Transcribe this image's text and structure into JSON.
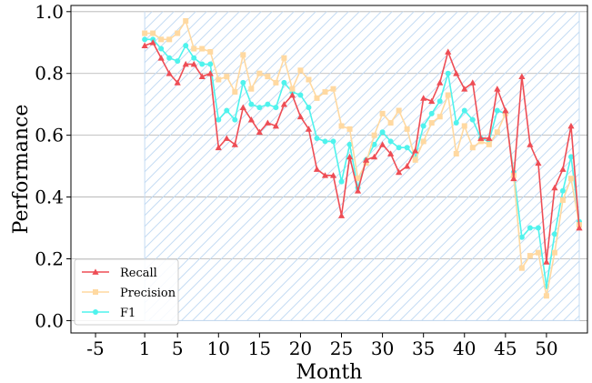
{
  "chart_data": {
    "type": "line",
    "xlabel": "Month",
    "ylabel": "Performance",
    "xlim": [
      -8,
      55
    ],
    "ylim": [
      -0.04,
      1.02
    ],
    "xticks": [
      -5,
      1,
      5,
      10,
      15,
      20,
      25,
      30,
      35,
      40,
      45,
      50
    ],
    "xtick_labels": [
      "-5",
      "1",
      "5",
      "10",
      "15",
      "20",
      "25",
      "30",
      "35",
      "40",
      "45",
      "50"
    ],
    "yticks": [
      0.0,
      0.2,
      0.4,
      0.6,
      0.8,
      1.0
    ],
    "ytick_labels": [
      "0.0",
      "0.2",
      "0.4",
      "0.6",
      "0.8",
      "1.0"
    ],
    "grid": "horizontal",
    "legend_position": "bottom-left",
    "x": [
      1,
      2,
      3,
      4,
      5,
      6,
      7,
      8,
      9,
      10,
      11,
      12,
      13,
      14,
      15,
      16,
      17,
      18,
      19,
      20,
      21,
      22,
      23,
      24,
      25,
      26,
      27,
      28,
      29,
      30,
      31,
      32,
      33,
      34,
      35,
      36,
      37,
      38,
      39,
      40,
      41,
      42,
      43,
      44,
      45,
      46,
      47,
      48,
      49,
      50,
      51,
      52,
      53,
      54
    ],
    "series": [
      {
        "name": "Recall",
        "color": "#ee4d55",
        "marker": "triangle",
        "values": [
          0.89,
          0.9,
          0.85,
          0.8,
          0.77,
          0.83,
          0.83,
          0.79,
          0.8,
          0.56,
          0.59,
          0.57,
          0.69,
          0.65,
          0.61,
          0.64,
          0.63,
          0.7,
          0.73,
          0.66,
          0.62,
          0.49,
          0.47,
          0.47,
          0.34,
          0.53,
          0.42,
          0.52,
          0.53,
          0.57,
          0.54,
          0.48,
          0.5,
          0.55,
          0.72,
          0.71,
          0.77,
          0.87,
          0.8,
          0.75,
          0.77,
          0.59,
          0.59,
          0.75,
          0.68,
          0.46,
          0.79,
          0.57,
          0.51,
          0.19,
          0.43,
          0.49,
          0.63,
          0.3
        ]
      },
      {
        "name": "Precision",
        "color": "#ffd9a1",
        "marker": "square",
        "values": [
          0.93,
          0.93,
          0.91,
          0.91,
          0.93,
          0.97,
          0.88,
          0.88,
          0.87,
          0.78,
          0.79,
          0.74,
          0.86,
          0.75,
          0.8,
          0.79,
          0.77,
          0.85,
          0.75,
          0.81,
          0.78,
          0.72,
          0.74,
          0.75,
          0.63,
          0.62,
          0.46,
          0.51,
          0.6,
          0.67,
          0.64,
          0.68,
          0.62,
          0.52,
          0.58,
          0.64,
          0.66,
          0.73,
          0.54,
          0.63,
          0.56,
          0.58,
          0.57,
          0.61,
          0.67,
          0.47,
          0.17,
          0.21,
          0.22,
          0.08,
          0.22,
          0.39,
          0.46,
          0.31
        ]
      },
      {
        "name": "F1",
        "color": "#4ff3ed",
        "marker": "circle",
        "values": [
          0.91,
          0.91,
          0.88,
          0.85,
          0.84,
          0.89,
          0.85,
          0.83,
          0.83,
          0.65,
          0.68,
          0.65,
          0.77,
          0.7,
          0.69,
          0.7,
          0.69,
          0.77,
          0.74,
          0.73,
          0.69,
          0.59,
          0.58,
          0.58,
          0.45,
          0.57,
          0.43,
          0.52,
          0.57,
          0.61,
          0.58,
          0.56,
          0.56,
          0.53,
          0.63,
          0.67,
          0.71,
          0.8,
          0.64,
          0.68,
          0.65,
          0.59,
          0.58,
          0.68,
          0.67,
          0.48,
          0.27,
          0.3,
          0.3,
          0.11,
          0.28,
          0.42,
          0.53,
          0.32
        ]
      }
    ],
    "hatch_region": {
      "x_start": 1,
      "x_end": 54,
      "color": "#c5dcf3"
    }
  }
}
